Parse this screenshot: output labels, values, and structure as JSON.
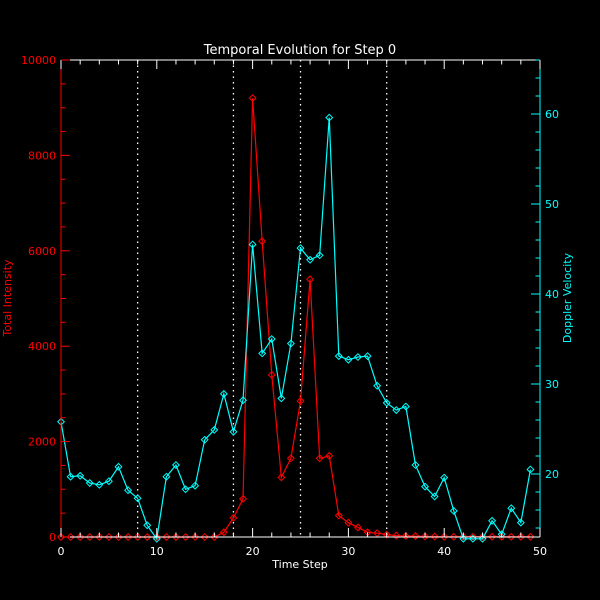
{
  "chart_data": {
    "type": "line",
    "title": "Temporal Evolution for Step 0",
    "xlabel": "Time Step",
    "ylabel_left": "Total Intensity",
    "ylabel_right": "Doppler Velocity",
    "xlim": [
      0,
      50
    ],
    "ylim_left": [
      0,
      10000
    ],
    "ylim_right": [
      13,
      66
    ],
    "x_ticks": [
      "0",
      "10",
      "20",
      "30",
      "40",
      "50"
    ],
    "y_ticks_left": [
      "0",
      "2000",
      "4000",
      "6000",
      "8000",
      "10000"
    ],
    "y_ticks_right": [
      "20",
      "30",
      "40",
      "50",
      "60"
    ],
    "vertical_lines": [
      8,
      18,
      25,
      34
    ],
    "colors": {
      "intensity": "#ff0000",
      "velocity": "#00ffff",
      "axes": "#ffffff",
      "vlines": "#ffffff"
    },
    "x": [
      0,
      1,
      2,
      3,
      4,
      5,
      6,
      7,
      8,
      9,
      10,
      11,
      12,
      13,
      14,
      15,
      16,
      17,
      18,
      19,
      20,
      21,
      22,
      23,
      24,
      25,
      26,
      27,
      28,
      29,
      30,
      31,
      32,
      33,
      34,
      35,
      36,
      37,
      38,
      39,
      40,
      41,
      42,
      43,
      44,
      45,
      46,
      47,
      48,
      49
    ],
    "series": [
      {
        "axis": "left",
        "values": [
          0,
          0,
          0,
          0,
          0,
          0,
          0,
          0,
          0,
          0,
          0,
          0,
          0,
          0,
          0,
          0,
          0,
          100,
          400,
          800,
          9200,
          6200,
          3400,
          1250,
          1650,
          2850,
          5400,
          1650,
          1700,
          450,
          300,
          200,
          100,
          80,
          50,
          30,
          20,
          20,
          10,
          10,
          5,
          5,
          5,
          5,
          5,
          5,
          5,
          5,
          5,
          5
        ]
      },
      {
        "axis": "right",
        "values": [
          25.8,
          19.7,
          19.8,
          19.0,
          18.8,
          19.2,
          20.8,
          18.2,
          17.3,
          14.3,
          12.8,
          19.7,
          21.0,
          18.3,
          18.7,
          23.8,
          24.9,
          28.9,
          24.7,
          28.2,
          45.5,
          33.4,
          35.0,
          28.4,
          34.5,
          45.1,
          43.8,
          44.3,
          59.6,
          33.1,
          32.7,
          33.0,
          33.1,
          29.8,
          27.9,
          27.1,
          27.5,
          21.0,
          18.6,
          17.5,
          19.6,
          15.9,
          12.8,
          12.8,
          12.8,
          14.8,
          13.3,
          16.2,
          14.6,
          20.5
        ]
      }
    ]
  }
}
